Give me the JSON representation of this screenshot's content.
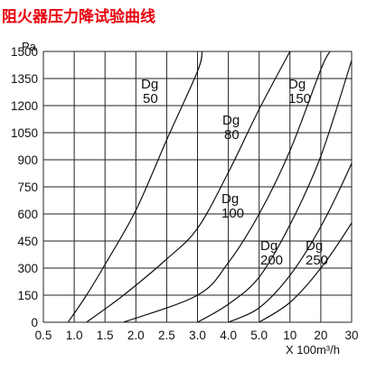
{
  "title": "阻火器压力降试验曲线",
  "colors": {
    "title": "#e8000d",
    "grid": "#222222",
    "curve": "#111111"
  },
  "chart_data": {
    "type": "line",
    "title": "阻火器压力降试验曲线",
    "ylabel": "Pa",
    "xlabel": "X 100m³/h",
    "x_scale": "categorical, non-linear flow values, one per grid column",
    "x_ticks": [
      "0.5",
      "1.0",
      "1.5",
      "2.0",
      "2.5",
      "3.0",
      "4.0",
      "5.0",
      "10",
      "20",
      "30"
    ],
    "y_ticks": [
      "0",
      "150",
      "300",
      "450",
      "600",
      "750",
      "900",
      "1050",
      "1200",
      "1350",
      "1500"
    ],
    "ylim": [
      0,
      1500
    ],
    "grid": true,
    "series": [
      {
        "name": "Dg 50",
        "label_lines": [
          "Dg",
          "50"
        ],
        "points": [
          [
            0.9,
            0
          ],
          [
            1.2,
            150
          ],
          [
            1.5,
            320
          ],
          [
            2.0,
            620
          ],
          [
            2.5,
            1010
          ],
          [
            3.0,
            1390
          ],
          [
            3.15,
            1500
          ]
        ]
      },
      {
        "name": "Dg 80",
        "label_lines": [
          "Dg",
          "80"
        ],
        "points": [
          [
            1.2,
            0
          ],
          [
            1.8,
            150
          ],
          [
            2.5,
            350
          ],
          [
            3.0,
            520
          ],
          [
            4.0,
            830
          ],
          [
            5.0,
            1180
          ],
          [
            10,
            1500
          ]
        ]
      },
      {
        "name": "Dg 100",
        "label_lines": [
          "Dg",
          "100"
        ],
        "points": [
          [
            1.8,
            0
          ],
          [
            3.0,
            150
          ],
          [
            4.0,
            330
          ],
          [
            5.0,
            600
          ],
          [
            10,
            950
          ],
          [
            20,
            1400
          ],
          [
            23,
            1500
          ]
        ]
      },
      {
        "name": "Dg 150",
        "label_lines": [
          "Dg",
          "150"
        ],
        "points": [
          [
            3.0,
            0
          ],
          [
            4.0,
            100
          ],
          [
            5.0,
            250
          ],
          [
            10,
            540
          ],
          [
            20,
            920
          ],
          [
            30,
            1450
          ],
          [
            31,
            1500
          ]
        ]
      },
      {
        "name": "Dg 200",
        "label_lines": [
          "Dg",
          "200"
        ],
        "points": [
          [
            4.0,
            0
          ],
          [
            5.0,
            80
          ],
          [
            10,
            260
          ],
          [
            20,
            530
          ],
          [
            30,
            880
          ],
          [
            31,
            950
          ]
        ]
      },
      {
        "name": "Dg 250",
        "label_lines": [
          "Dg",
          "250"
        ],
        "points": [
          [
            5.0,
            0
          ],
          [
            10,
            110
          ],
          [
            20,
            300
          ],
          [
            30,
            550
          ],
          [
            31,
            600
          ]
        ]
      }
    ]
  }
}
